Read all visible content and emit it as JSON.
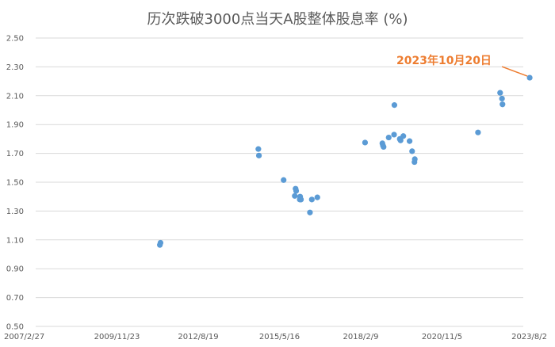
{
  "chart_data": {
    "type": "scatter",
    "title": "历次跌破3000点当天A股整体股息率 (%)",
    "xlabel": "",
    "ylabel": "",
    "x_ticks": [
      "2007/2/27",
      "2009/11/23",
      "2012/8/19",
      "2015/5/16",
      "2018/2/9",
      "2020/11/5",
      "2023/8/2"
    ],
    "y_ticks": [
      "0.50",
      "0.70",
      "0.90",
      "1.10",
      "1.30",
      "1.50",
      "1.70",
      "1.90",
      "2.10",
      "2.30",
      "2.50"
    ],
    "xlim": [
      "2007/2/27",
      "2023/8/2"
    ],
    "ylim": [
      0.5,
      2.5
    ],
    "grid": "horizontal",
    "series": [
      {
        "color": "#5B9BD5",
        "points": [
          {
            "x": "2011/5/13",
            "y": 1.08
          },
          {
            "x": "2011/5/5",
            "y": 1.065
          },
          {
            "x": "2014/8/29",
            "y": 1.73
          },
          {
            "x": "2014/9/5",
            "y": 1.685
          },
          {
            "x": "2015/7/6",
            "y": 1.515
          },
          {
            "x": "2015/11/30",
            "y": 1.455
          },
          {
            "x": "2015/12/7",
            "y": 1.44
          },
          {
            "x": "2015/11/20",
            "y": 1.405
          },
          {
            "x": "2016/1/25",
            "y": 1.4
          },
          {
            "x": "2016/1/21",
            "y": 1.38
          },
          {
            "x": "2016/2/4",
            "y": 1.38
          },
          {
            "x": "2016/6/17",
            "y": 1.38
          },
          {
            "x": "2016/8/24",
            "y": 1.395
          },
          {
            "x": "2016/5/25",
            "y": 1.29
          },
          {
            "x": "2018/4/3",
            "y": 1.775
          },
          {
            "x": "2018/11/2",
            "y": 1.77
          },
          {
            "x": "2018/11/9",
            "y": 1.755
          },
          {
            "x": "2018/11/17",
            "y": 1.745
          },
          {
            "x": "2019/1/19",
            "y": 1.81
          },
          {
            "x": "2019/3/26",
            "y": 1.83
          },
          {
            "x": "2019/3/30",
            "y": 2.035
          },
          {
            "x": "2019/6/4",
            "y": 1.8
          },
          {
            "x": "2019/6/14",
            "y": 1.79
          },
          {
            "x": "2019/7/18",
            "y": 1.82
          },
          {
            "x": "2019/10/3",
            "y": 1.785
          },
          {
            "x": "2019/11/3",
            "y": 1.715
          },
          {
            "x": "2019/12/6",
            "y": 1.66
          },
          {
            "x": "2019/12/2",
            "y": 1.64
          },
          {
            "x": "2022/1/22",
            "y": 1.845
          },
          {
            "x": "2022/10/21",
            "y": 2.12
          },
          {
            "x": "2022/11/13",
            "y": 2.08
          },
          {
            "x": "2022/11/19",
            "y": 2.04
          },
          {
            "x": "2023/10/20",
            "y": 2.225
          }
        ]
      }
    ],
    "annotation": {
      "text": "2023年10月20日",
      "color": "#ED7D31",
      "x": "2023/10/20",
      "y": 2.225
    }
  }
}
